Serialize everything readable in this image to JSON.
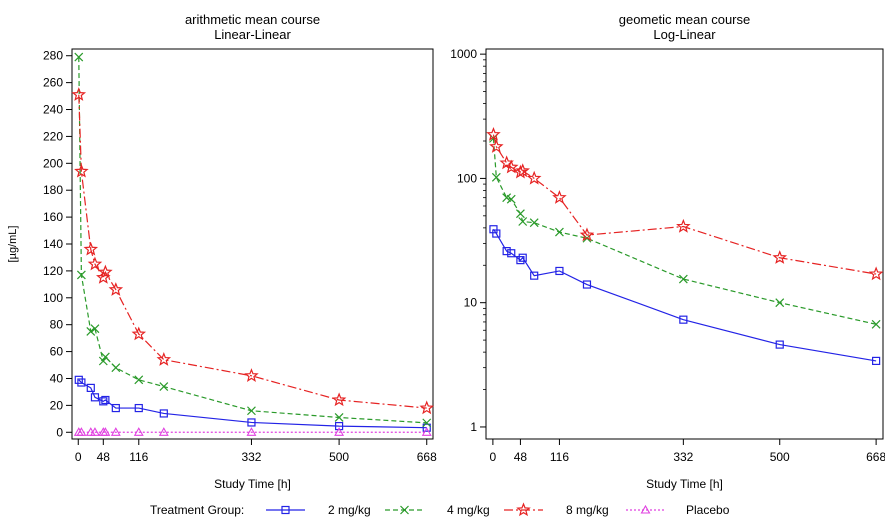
{
  "chart_data": [
    {
      "type": "line",
      "title": "arithmetic mean course",
      "subtitle": "Linear-Linear",
      "xlabel": "Study Time [h]",
      "ylabel": "[µg/mL]",
      "xlim": [
        -12,
        680
      ],
      "ylim": [
        -5,
        285
      ],
      "yscale": "linear",
      "xticks": [
        0,
        48,
        116,
        332,
        500,
        668
      ],
      "yticks": [
        0,
        20,
        40,
        60,
        80,
        100,
        120,
        140,
        160,
        180,
        200,
        220,
        240,
        260,
        280
      ],
      "grid": false,
      "series": [
        {
          "name": "2 mg/kg",
          "color": "#2323e6",
          "marker": "square",
          "dash": "solid",
          "x": [
            1,
            6,
            24,
            32,
            48,
            52,
            72,
            116,
            164,
            332,
            500,
            668
          ],
          "y": [
            39,
            37,
            33,
            26,
            23,
            24,
            18,
            18,
            14,
            7.3,
            4.6,
            3.4
          ]
        },
        {
          "name": "4 mg/kg",
          "color": "#2a9a2a",
          "marker": "x",
          "dash": "dashed",
          "x": [
            1,
            6,
            24,
            32,
            48,
            52,
            72,
            116,
            164,
            332,
            500,
            668
          ],
          "y": [
            279,
            117,
            75,
            77,
            53,
            56,
            48,
            39,
            34,
            16,
            11,
            7
          ]
        },
        {
          "name": "8 mg/kg",
          "color": "#e62323",
          "marker": "star",
          "dash": "dashdot",
          "x": [
            1,
            6,
            24,
            32,
            48,
            52,
            72,
            116,
            164,
            332,
            500,
            668
          ],
          "y": [
            251,
            194,
            136,
            125,
            115,
            119,
            106,
            73,
            54,
            42,
            24,
            18
          ]
        },
        {
          "name": "Placebo",
          "color": "#e040e0",
          "marker": "triangle",
          "dash": "dotted",
          "x": [
            1,
            6,
            24,
            32,
            48,
            52,
            72,
            116,
            164,
            332,
            500,
            668
          ],
          "y": [
            0,
            0,
            0,
            0,
            0,
            0,
            0,
            0,
            0,
            0,
            0,
            0
          ]
        }
      ]
    },
    {
      "type": "line",
      "title": "geometic mean course",
      "subtitle": "Log-Linear",
      "xlabel": "Study Time [h]",
      "ylabel": "",
      "xlim": [
        -12,
        680
      ],
      "ylim": [
        0.8,
        1100
      ],
      "yscale": "log",
      "xticks": [
        0,
        48,
        116,
        332,
        500,
        668
      ],
      "yticks": [
        1,
        10,
        100,
        1000
      ],
      "grid": false,
      "series": [
        {
          "name": "2 mg/kg",
          "color": "#2323e6",
          "marker": "square",
          "dash": "solid",
          "x": [
            1,
            6,
            24,
            32,
            48,
            52,
            72,
            116,
            164,
            332,
            500,
            668
          ],
          "y": [
            39,
            36,
            26,
            25,
            22,
            23,
            16.5,
            18,
            14,
            7.3,
            4.6,
            3.4
          ]
        },
        {
          "name": "4 mg/kg",
          "color": "#2a9a2a",
          "marker": "x",
          "dash": "dashed",
          "x": [
            1,
            6,
            24,
            32,
            48,
            52,
            72,
            116,
            164,
            332,
            500,
            668
          ],
          "y": [
            210,
            102,
            70,
            68,
            52,
            45,
            44,
            37,
            33,
            15.5,
            10,
            6.7
          ]
        },
        {
          "name": "8 mg/kg",
          "color": "#e62323",
          "marker": "star",
          "dash": "dashdot",
          "x": [
            1,
            6,
            24,
            32,
            48,
            52,
            72,
            116,
            164,
            332,
            500,
            668
          ],
          "y": [
            225,
            180,
            133,
            123,
            112,
            115,
            100,
            70,
            35,
            41,
            23,
            17
          ]
        }
      ]
    }
  ],
  "legend": {
    "title": "Treatment Group:",
    "position": "bottom",
    "items": [
      "2 mg/kg",
      "4 mg/kg",
      "8 mg/kg",
      "Placebo"
    ]
  }
}
